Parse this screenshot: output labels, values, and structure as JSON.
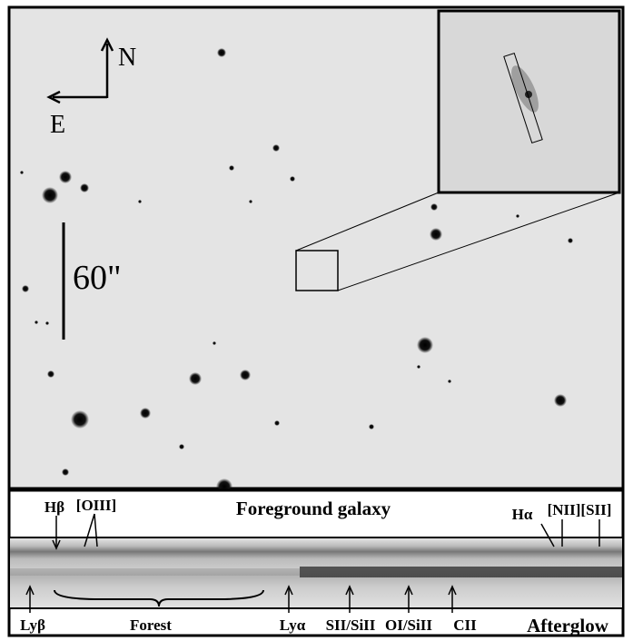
{
  "compass": {
    "north": "N",
    "east": "E"
  },
  "scale_bar": {
    "label": "60\""
  },
  "spectrum": {
    "top_title": "Foreground galaxy",
    "bottom_title": "Afterglow",
    "top_lines": [
      "Hβ",
      "[OIII]",
      "Hα",
      "[NII][SII]"
    ],
    "bottom_lines": [
      "Lyβ",
      "Forest",
      "Lyα",
      "SII/SiII",
      "OI/SiII",
      "CII"
    ]
  }
}
